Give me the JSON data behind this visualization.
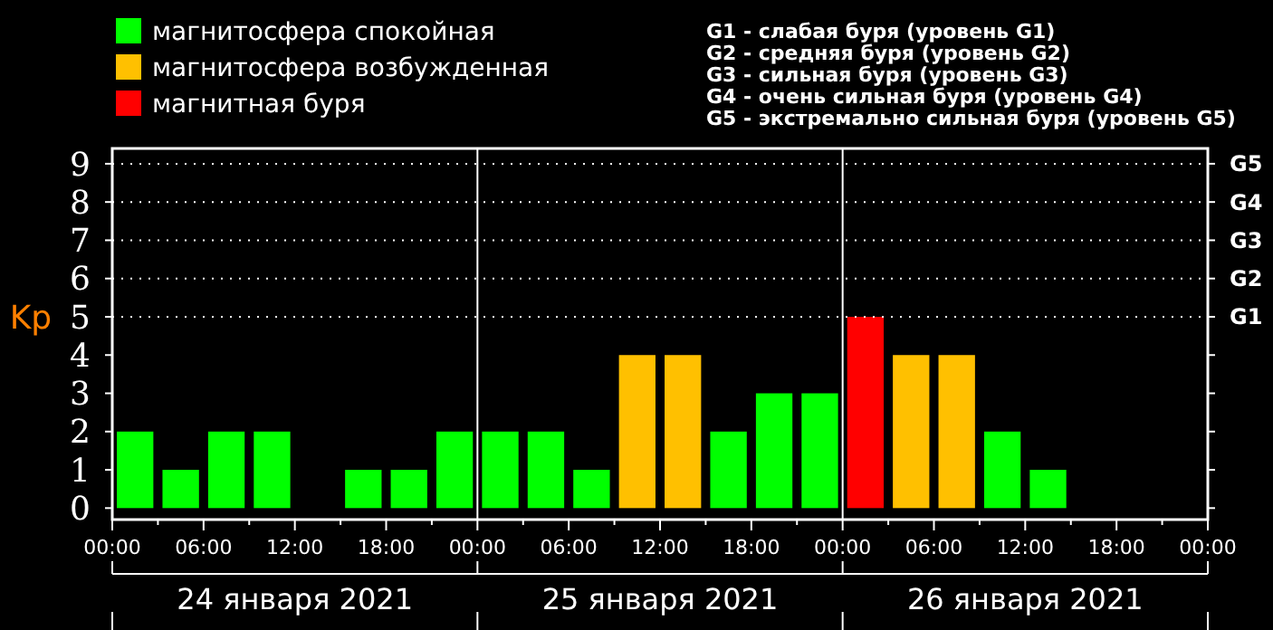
{
  "chart_data": {
    "type": "bar",
    "ylabel": "Kp",
    "x": [
      "2021-01-24T01:30",
      "2021-01-24T04:30",
      "2021-01-24T07:30",
      "2021-01-24T10:30",
      "2021-01-24T13:30",
      "2021-01-24T16:30",
      "2021-01-24T19:30",
      "2021-01-24T22:30",
      "2021-01-25T01:30",
      "2021-01-25T04:30",
      "2021-01-25T07:30",
      "2021-01-25T10:30",
      "2021-01-25T13:30",
      "2021-01-25T16:30",
      "2021-01-25T19:30",
      "2021-01-25T22:30",
      "2021-01-26T01:30",
      "2021-01-26T04:30",
      "2021-01-26T07:30",
      "2021-01-26T10:30",
      "2021-01-26T13:30"
    ],
    "series": [
      {
        "name": "магнитосфера спокойная",
        "color": "#00ff00",
        "values": [
          2,
          1,
          2,
          2,
          0,
          1,
          1,
          2,
          2,
          2,
          1,
          null,
          null,
          2,
          3,
          3,
          null,
          null,
          null,
          2,
          1
        ]
      },
      {
        "name": "магнитосфера возбужденная",
        "color": "#ffc000",
        "values": [
          null,
          null,
          null,
          null,
          null,
          null,
          null,
          null,
          null,
          null,
          null,
          4,
          4,
          null,
          null,
          null,
          null,
          4,
          4,
          null,
          null
        ]
      },
      {
        "name": "магнитная буря",
        "color": "#ff0000",
        "values": [
          null,
          null,
          null,
          null,
          null,
          null,
          null,
          null,
          null,
          null,
          null,
          null,
          null,
          null,
          null,
          null,
          5,
          null,
          null,
          null,
          null
        ]
      }
    ],
    "xlim": [
      "2021-01-24T00:00",
      "2021-01-27T00:00"
    ],
    "xticks": [
      {
        "value": "2021-01-24T00:00",
        "label": "00:00"
      },
      {
        "value": "2021-01-24T03:00",
        "label": null
      },
      {
        "value": "2021-01-24T06:00",
        "label": "06:00"
      },
      {
        "value": "2021-01-24T09:00",
        "label": null
      },
      {
        "value": "2021-01-24T12:00",
        "label": "12:00"
      },
      {
        "value": "2021-01-24T15:00",
        "label": null
      },
      {
        "value": "2021-01-24T18:00",
        "label": "18:00"
      },
      {
        "value": "2021-01-24T21:00",
        "label": null
      },
      {
        "value": "2021-01-25T00:00",
        "label": "00:00"
      },
      {
        "value": "2021-01-25T03:00",
        "label": null
      },
      {
        "value": "2021-01-25T06:00",
        "label": "06:00"
      },
      {
        "value": "2021-01-25T09:00",
        "label": null
      },
      {
        "value": "2021-01-25T12:00",
        "label": "12:00"
      },
      {
        "value": "2021-01-25T15:00",
        "label": null
      },
      {
        "value": "2021-01-25T18:00",
        "label": "18:00"
      },
      {
        "value": "2021-01-25T21:00",
        "label": null
      },
      {
        "value": "2021-01-26T00:00",
        "label": "00:00"
      },
      {
        "value": "2021-01-26T03:00",
        "label": null
      },
      {
        "value": "2021-01-26T06:00",
        "label": "06:00"
      },
      {
        "value": "2021-01-26T09:00",
        "label": null
      },
      {
        "value": "2021-01-26T12:00",
        "label": "12:00"
      },
      {
        "value": "2021-01-26T15:00",
        "label": null
      },
      {
        "value": "2021-01-26T18:00",
        "label": "18:00"
      },
      {
        "value": "2021-01-26T21:00",
        "label": null
      },
      {
        "value": "2021-01-27T00:00",
        "label": "00:00"
      }
    ],
    "ylim": [
      -0.3,
      9.4
    ],
    "yticks": [
      0,
      1,
      2,
      3,
      4,
      5,
      6,
      7,
      8,
      9
    ],
    "ref_lines": [
      {
        "axis": "x",
        "value": "2021-01-25T00:00",
        "color": "#ffffff"
      },
      {
        "axis": "x",
        "value": "2021-01-26T00:00",
        "color": "#ffffff"
      },
      {
        "axis": "y",
        "value": 5,
        "label": "G1",
        "color": "#ffffff",
        "line_style": "dotted"
      },
      {
        "axis": "y",
        "value": 6,
        "label": "G2",
        "color": "#ffffff",
        "line_style": "dotted"
      },
      {
        "axis": "y",
        "value": 7,
        "label": "G3",
        "color": "#ffffff",
        "line_style": "dotted"
      },
      {
        "axis": "y",
        "value": 8,
        "label": "G4",
        "color": "#ffffff",
        "line_style": "dotted"
      },
      {
        "axis": "y",
        "value": 9,
        "label": "G5",
        "color": "#ffffff",
        "line_style": "dotted"
      }
    ],
    "legend": "top left",
    "annotations": [
      "24 января 2021",
      "25 января 2021",
      "26 января 2021",
      "G1 - слабая буря (уровень G1)",
      "G2 - средняя буря (уровень G2)",
      "G3 - сильная буря (уровень G3)",
      "G4 - очень сильная буря (уровень G4)",
      "G5 - экстремально сильная буря (уровень G5)"
    ]
  }
}
